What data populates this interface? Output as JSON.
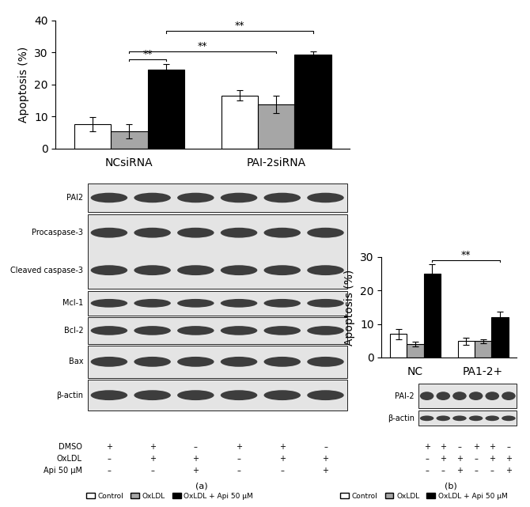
{
  "chart_data": [
    {
      "type": "bar",
      "panel_label": "(a)",
      "ylabel": "Apoptosis (%)",
      "categories": [
        "NCsiRNA",
        "PAI-2siRNA"
      ],
      "series": [
        {
          "name": "Control",
          "color": "#ffffff",
          "values": [
            7.7,
            16.5
          ],
          "errors": [
            2.2,
            1.6
          ]
        },
        {
          "name": "OxLDL",
          "color": "#a6a6a6",
          "values": [
            5.3,
            13.8
          ],
          "errors": [
            2.2,
            2.8
          ]
        },
        {
          "name": "OxLDL + Api 50 μM",
          "color": "#000000",
          "values": [
            24.7,
            29.4
          ],
          "errors": [
            1.6,
            0.8
          ]
        }
      ],
      "ylim": [
        0,
        40
      ],
      "yticks": [
        0,
        10,
        20,
        30,
        40
      ],
      "legend": "lower center",
      "significance": [
        {
          "text": "**",
          "from": [
            0,
            1
          ],
          "to": [
            0,
            2
          ]
        },
        {
          "text": "**",
          "from": [
            0,
            1
          ],
          "to": [
            1,
            1
          ]
        },
        {
          "text": "**",
          "from": [
            0,
            2
          ],
          "to": [
            1,
            2
          ]
        }
      ]
    },
    {
      "type": "bar",
      "panel_label": "(b)",
      "ylabel": "Apoptosis (%)",
      "categories": [
        "NC",
        "PA1-2+"
      ],
      "series": [
        {
          "name": "Control",
          "color": "#ffffff",
          "values": [
            7.0,
            4.9
          ],
          "errors": [
            1.6,
            1.1
          ]
        },
        {
          "name": "OxLDL",
          "color": "#a6a6a6",
          "values": [
            4.0,
            4.9
          ],
          "errors": [
            0.8,
            0.6
          ]
        },
        {
          "name": "OxLDL + Api 50 μM",
          "color": "#000000",
          "values": [
            25.0,
            12.0
          ],
          "errors": [
            2.8,
            1.6
          ]
        }
      ],
      "ylim": [
        0,
        30
      ],
      "yticks": [
        0,
        10,
        20,
        30
      ],
      "legend": "lower center",
      "significance": [
        {
          "text": "**",
          "from": [
            0,
            2
          ],
          "to": [
            1,
            2
          ]
        }
      ]
    }
  ],
  "blots": [
    {
      "rows": [
        [
          "PAI2"
        ],
        [
          "Procaspase-3",
          "Cleaved caspase-3"
        ],
        [
          "Mcl-1"
        ],
        [
          "Bcl-2"
        ],
        [
          "Bax"
        ],
        [
          "β-actin"
        ]
      ],
      "treatments": [
        {
          "label": "DMSO",
          "marks": [
            "+",
            "+",
            "–",
            "+",
            "+",
            "–"
          ]
        },
        {
          "label": "OxLDL",
          "marks": [
            "–",
            "+",
            "+",
            "–",
            "+",
            "+"
          ]
        },
        {
          "label": "Api 50 μM",
          "marks": [
            "–",
            "–",
            "+",
            "–",
            "–",
            "+"
          ]
        }
      ]
    },
    {
      "rows": [
        [
          "PAI-2"
        ],
        [
          "β-actin"
        ]
      ],
      "treatments": [
        {
          "marks": [
            "+",
            "+",
            "–",
            "+",
            "+",
            "–"
          ]
        },
        {
          "marks": [
            "–",
            "+",
            "+",
            "–",
            "+",
            "+"
          ]
        },
        {
          "marks": [
            "–",
            "–",
            "+",
            "–",
            "–",
            "+"
          ]
        }
      ]
    }
  ]
}
